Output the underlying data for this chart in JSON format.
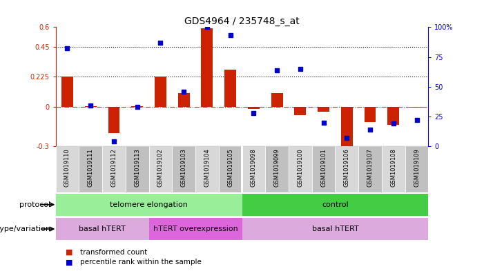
{
  "title": "GDS4964 / 235748_s_at",
  "samples": [
    "GSM1019110",
    "GSM1019111",
    "GSM1019112",
    "GSM1019113",
    "GSM1019102",
    "GSM1019103",
    "GSM1019104",
    "GSM1019105",
    "GSM1019098",
    "GSM1019099",
    "GSM1019100",
    "GSM1019101",
    "GSM1019106",
    "GSM1019107",
    "GSM1019108",
    "GSM1019109"
  ],
  "red_bars": [
    0.225,
    0.005,
    -0.2,
    0.003,
    0.225,
    0.1,
    0.59,
    0.28,
    -0.018,
    0.1,
    -0.065,
    -0.038,
    -0.355,
    -0.115,
    -0.135,
    -0.005
  ],
  "blue_dots_pct": [
    82,
    34,
    4,
    33,
    87,
    46,
    100,
    93,
    28,
    64,
    65,
    20,
    7,
    14,
    19,
    22
  ],
  "ylim_left": [
    -0.3,
    0.6
  ],
  "ylim_right": [
    0,
    100
  ],
  "left_yticks": [
    -0.3,
    0.0,
    0.225,
    0.45,
    0.6
  ],
  "left_yticklabels": [
    "-0.3",
    "0",
    "0.225",
    "0.45",
    "0.6"
  ],
  "right_yticks": [
    0,
    25,
    50,
    75,
    100
  ],
  "right_yticklabels": [
    "0",
    "25",
    "50",
    "75",
    "100%"
  ],
  "hlines": [
    0.225,
    0.45
  ],
  "group_separator": 7.5,
  "protocol_groups": [
    {
      "label": "telomere elongation",
      "start": 0,
      "end": 7,
      "color": "#99ee99"
    },
    {
      "label": "control",
      "start": 8,
      "end": 15,
      "color": "#44cc44"
    }
  ],
  "genotype_groups": [
    {
      "label": "basal hTERT",
      "start": 0,
      "end": 3,
      "color": "#ddaadd"
    },
    {
      "label": "hTERT overexpression",
      "start": 4,
      "end": 7,
      "color": "#dd66dd"
    },
    {
      "label": "basal hTERT",
      "start": 8,
      "end": 15,
      "color": "#ddaadd"
    }
  ],
  "legend_red_text": "transformed count",
  "legend_blue_text": "percentile rank within the sample",
  "bar_color": "#cc2200",
  "dot_color": "#0000cc",
  "zero_line_color": "#cc3333",
  "left_axis_color": "#cc2200",
  "right_axis_color": "#0000cc",
  "tick_bg_even": "#d8d8d8",
  "tick_bg_odd": "#c0c0c0",
  "title_fontsize": 10,
  "bar_width": 0.5
}
